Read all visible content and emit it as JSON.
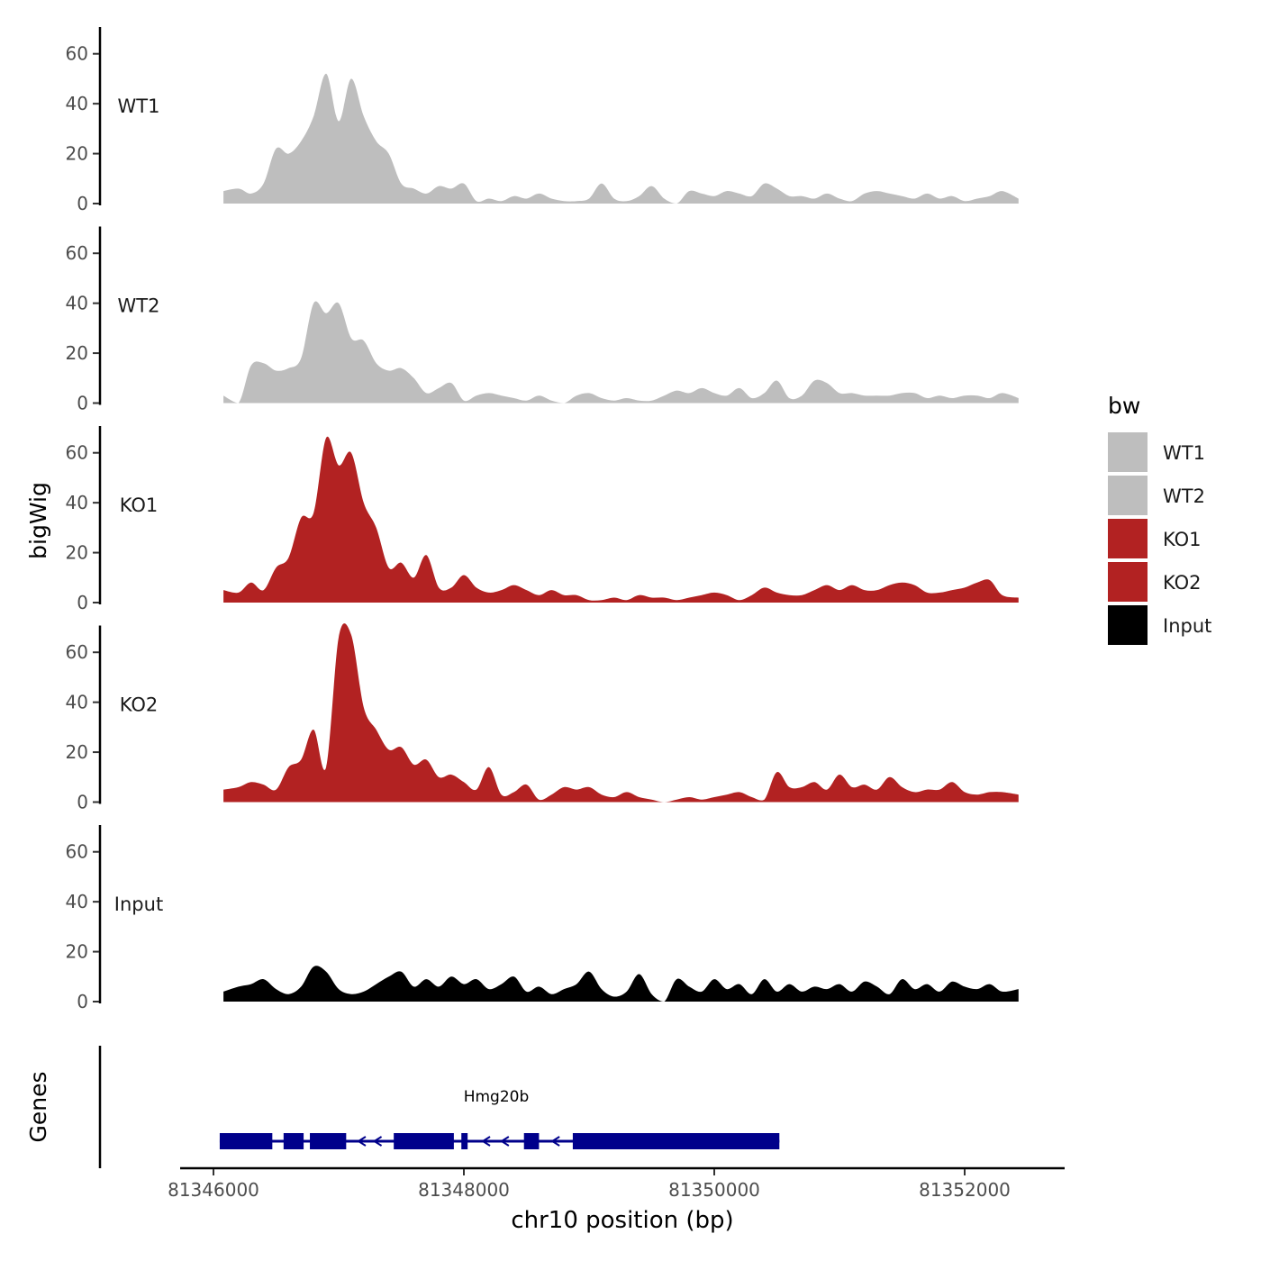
{
  "chart_data": {
    "type": "area",
    "title": "",
    "xlabel": "chr10 position (bp)",
    "x_ticks": [
      81346000,
      81348000,
      81350000,
      81352000
    ],
    "x_tick_labels": [
      "81346000",
      "81348000",
      "81350000",
      "81352000"
    ],
    "xlim": [
      81345700,
      81352800
    ],
    "coverage_track": {
      "ylabel": "bigWig",
      "ylim": [
        0,
        70
      ],
      "y_ticks": [
        0,
        20,
        40,
        60
      ],
      "y_tick_labels": [
        "0",
        "20",
        "40",
        "60"
      ],
      "x": [
        81346080,
        81346200,
        81346300,
        81346400,
        81346500,
        81346600,
        81346700,
        81346800,
        81346900,
        81347000,
        81347100,
        81347200,
        81347300,
        81347400,
        81347500,
        81347600,
        81347700,
        81347800,
        81347900,
        81348000,
        81348100,
        81348200,
        81348300,
        81348400,
        81348500,
        81348600,
        81348700,
        81348800,
        81348900,
        81349000,
        81349100,
        81349200,
        81349300,
        81349400,
        81349500,
        81349600,
        81349700,
        81349800,
        81349900,
        81350000,
        81350100,
        81350200,
        81350300,
        81350400,
        81350500,
        81350600,
        81350700,
        81350800,
        81350900,
        81351000,
        81351100,
        81351200,
        81351300,
        81351400,
        81351500,
        81351600,
        81351700,
        81351800,
        81351900,
        81352000,
        81352100,
        81352200,
        81352300,
        81352430
      ],
      "series": [
        {
          "name": "WT1",
          "color": "#bebebe",
          "values": [
            5,
            6,
            4,
            8,
            22,
            20,
            25,
            35,
            52,
            33,
            50,
            35,
            25,
            20,
            8,
            6,
            4,
            7,
            6,
            8,
            1,
            2,
            1,
            3,
            2,
            4,
            2,
            1,
            1,
            2,
            8,
            2,
            1,
            3,
            7,
            2,
            0,
            5,
            4,
            3,
            5,
            4,
            3,
            8,
            6,
            3,
            3,
            2,
            4,
            2,
            1,
            4,
            5,
            4,
            3,
            2,
            4,
            2,
            3,
            1,
            2,
            3,
            5,
            2
          ]
        },
        {
          "name": "WT2",
          "color": "#bebebe",
          "values": [
            3,
            0,
            15,
            16,
            13,
            14,
            18,
            40,
            36,
            40,
            26,
            25,
            16,
            13,
            14,
            10,
            4,
            6,
            8,
            1,
            3,
            4,
            3,
            2,
            1,
            3,
            1,
            0,
            3,
            4,
            2,
            1,
            2,
            1,
            1,
            3,
            5,
            4,
            6,
            4,
            3,
            6,
            2,
            4,
            9,
            2,
            3,
            9,
            8,
            4,
            4,
            3,
            3,
            3,
            4,
            4,
            2,
            3,
            2,
            3,
            3,
            2,
            4,
            2
          ]
        },
        {
          "name": "KO1",
          "color": "#b22222",
          "values": [
            5,
            4,
            8,
            5,
            14,
            18,
            34,
            36,
            66,
            55,
            60,
            40,
            30,
            14,
            16,
            10,
            19,
            6,
            6,
            11,
            6,
            4,
            5,
            7,
            5,
            3,
            5,
            3,
            3,
            1,
            1,
            2,
            1,
            3,
            2,
            2,
            1,
            2,
            3,
            4,
            3,
            1,
            3,
            6,
            4,
            3,
            3,
            5,
            7,
            5,
            7,
            5,
            5,
            7,
            8,
            7,
            4,
            4,
            5,
            6,
            8,
            9,
            3,
            2
          ]
        },
        {
          "name": "KO2",
          "color": "#b22222",
          "values": [
            5,
            6,
            8,
            7,
            5,
            14,
            17,
            29,
            14,
            66,
            67,
            38,
            29,
            21,
            22,
            15,
            17,
            10,
            11,
            8,
            5,
            14,
            3,
            4,
            7,
            1,
            3,
            6,
            5,
            6,
            3,
            2,
            4,
            2,
            1,
            0,
            1,
            2,
            1,
            2,
            3,
            4,
            2,
            1,
            12,
            6,
            6,
            8,
            5,
            11,
            6,
            7,
            5,
            10,
            6,
            4,
            5,
            5,
            8,
            4,
            3,
            4,
            4,
            3
          ]
        },
        {
          "name": "Input",
          "color": "#000000",
          "values": [
            4,
            6,
            7,
            9,
            5,
            3,
            6,
            14,
            12,
            5,
            3,
            4,
            7,
            10,
            12,
            6,
            9,
            6,
            10,
            7,
            9,
            5,
            7,
            10,
            4,
            6,
            3,
            5,
            7,
            12,
            5,
            2,
            4,
            11,
            3,
            0,
            9,
            6,
            4,
            9,
            5,
            7,
            3,
            9,
            4,
            7,
            4,
            6,
            5,
            7,
            4,
            8,
            6,
            3,
            9,
            5,
            7,
            4,
            8,
            6,
            5,
            7,
            4,
            5
          ]
        }
      ]
    },
    "gene_track": {
      "ylabel": "Genes",
      "gene_name": "Hmg20b",
      "gene_color": "#00008b",
      "strand": "-",
      "start": 81346050,
      "end": 81350520,
      "exons": [
        [
          81346050,
          81346470
        ],
        [
          81346560,
          81346720
        ],
        [
          81346770,
          81347060
        ],
        [
          81347440,
          81347920
        ],
        [
          81347980,
          81348030
        ],
        [
          81348480,
          81348600
        ],
        [
          81348870,
          81350520
        ]
      ]
    },
    "legend": {
      "title": "bw",
      "position": "right",
      "entries": [
        {
          "label": "WT1",
          "color": "#bebebe"
        },
        {
          "label": "WT2",
          "color": "#bebebe"
        },
        {
          "label": "KO1",
          "color": "#b22222"
        },
        {
          "label": "KO2",
          "color": "#b22222"
        },
        {
          "label": "Input",
          "color": "#000000"
        }
      ]
    }
  }
}
